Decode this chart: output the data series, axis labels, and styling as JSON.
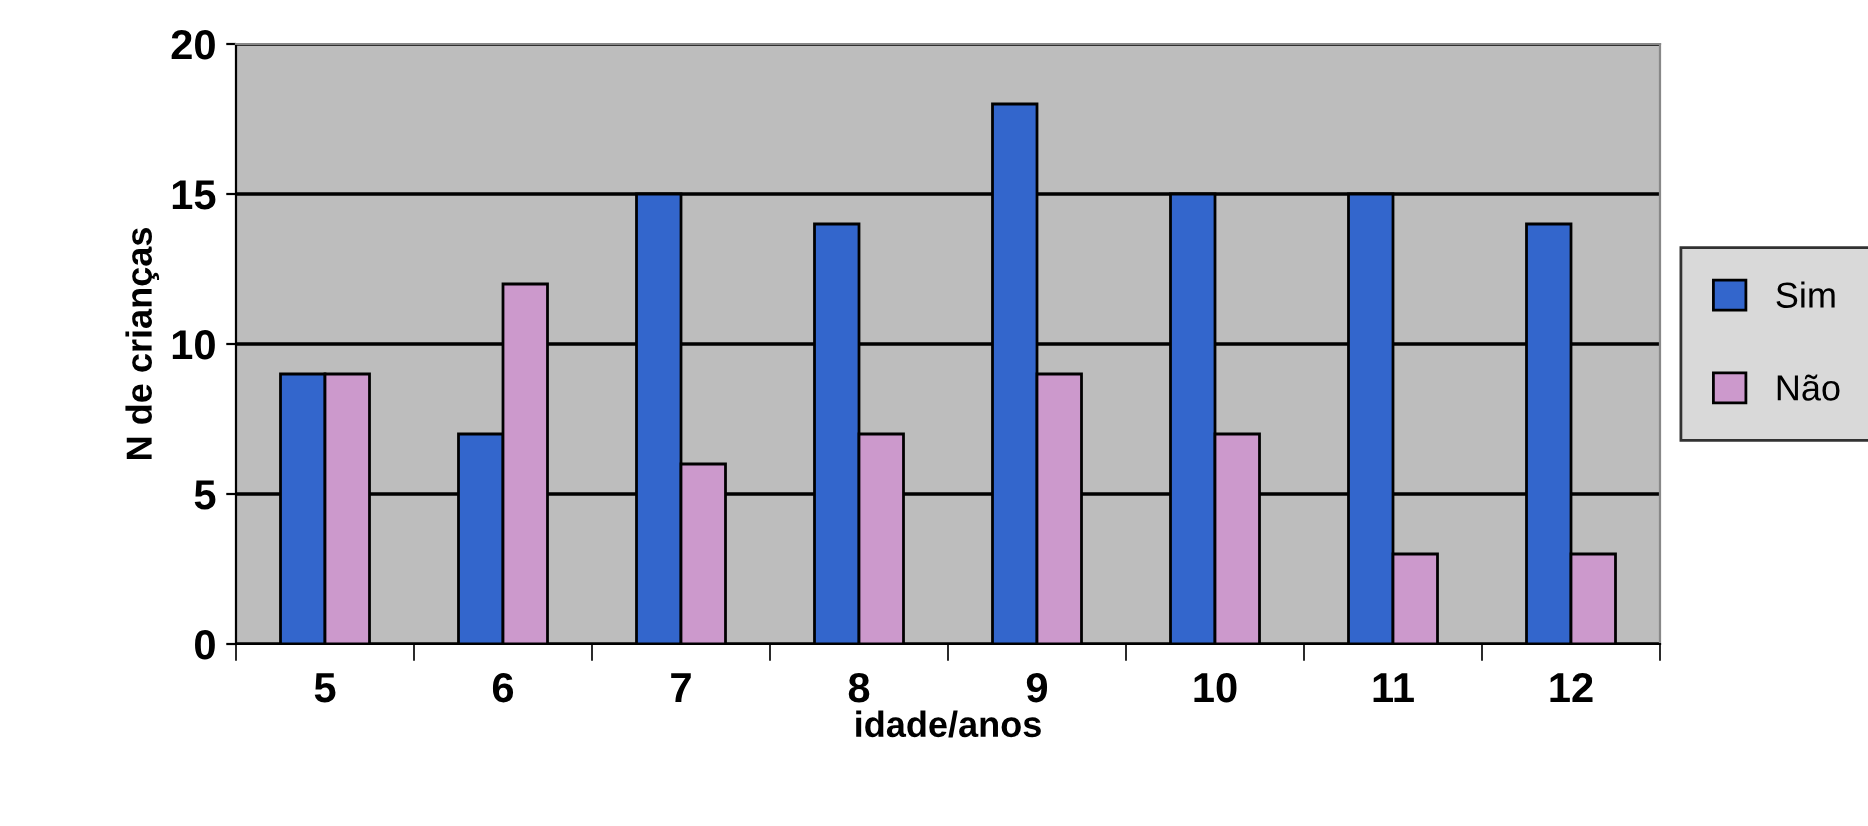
{
  "chart_data": {
    "type": "bar",
    "xlabel": "idade/anos",
    "ylabel": "N de crianças",
    "categories": [
      "5",
      "6",
      "7",
      "8",
      "9",
      "10",
      "11",
      "12"
    ],
    "series": [
      {
        "name": "Sim",
        "color": "#3366cc",
        "values": [
          9,
          7,
          15,
          14,
          18,
          15,
          15,
          14
        ]
      },
      {
        "name": "Não",
        "color": "#cc99cc",
        "values": [
          9,
          12,
          6,
          7,
          9,
          7,
          3,
          3
        ]
      }
    ],
    "ylim": [
      0,
      20
    ],
    "yticks": [
      0,
      5,
      10,
      15,
      20
    ],
    "grid": "y",
    "legend": "right"
  }
}
